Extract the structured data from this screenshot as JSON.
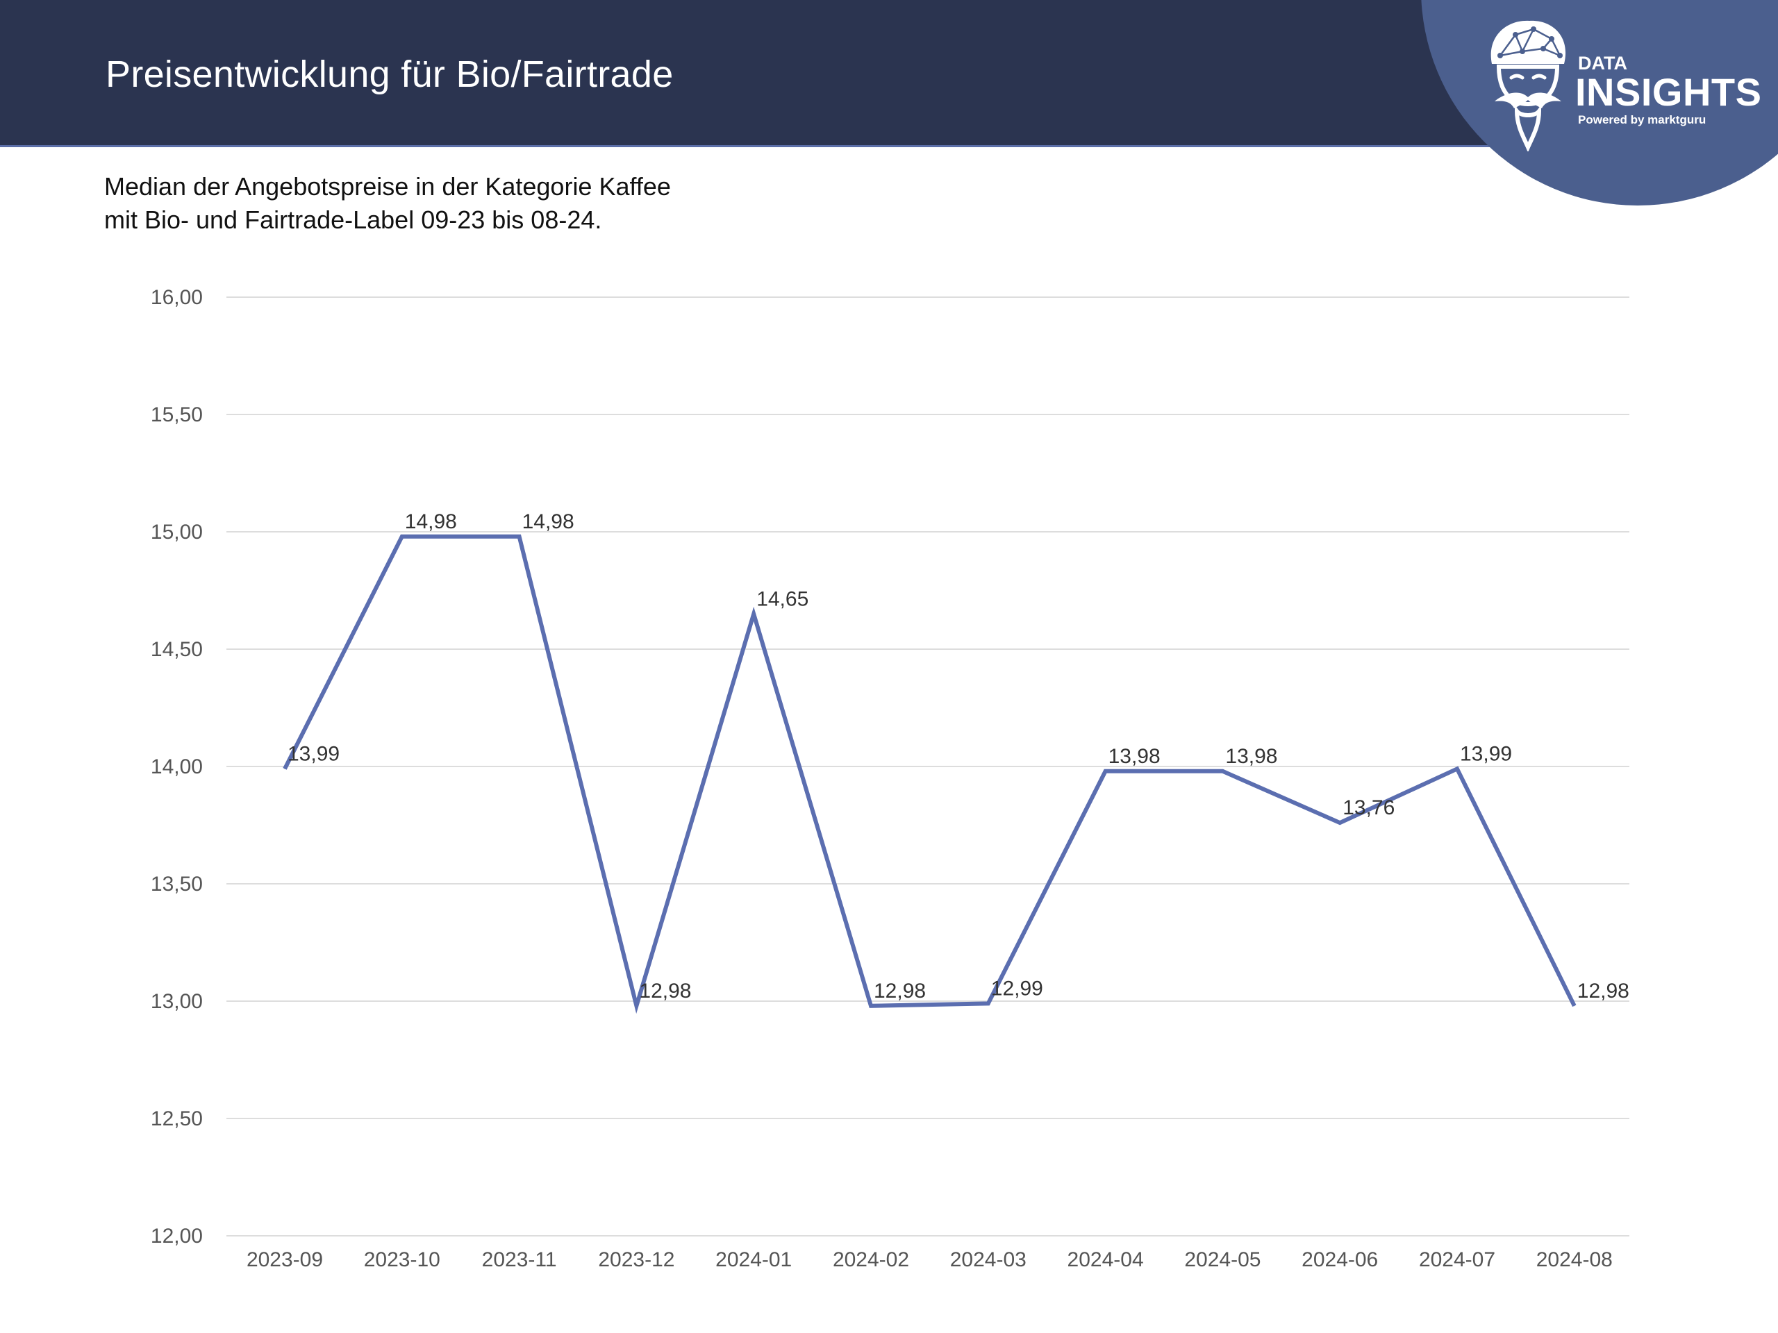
{
  "header": {
    "title": "Preisentwicklung für Bio/Fairtrade",
    "background": "#2b3450"
  },
  "brand": {
    "line1": "DATA",
    "line2": "INSIGHTS",
    "tagline": "Powered by marktguru",
    "badge_color": "#4b5f8e",
    "logo_icon": "mascot-turban-icon"
  },
  "subtitle": {
    "line1": "Median der Angebotspreise in der Kategorie Kaffee",
    "line2": "mit Bio- und Fairtrade-Label 09-23 bis 08-24."
  },
  "chart_data": {
    "type": "line",
    "categories": [
      "2023-09",
      "2023-10",
      "2023-11",
      "2023-12",
      "2024-01",
      "2024-02",
      "2024-03",
      "2024-04",
      "2024-05",
      "2024-06",
      "2024-07",
      "2024-08"
    ],
    "series": [
      {
        "values": [
          13.99,
          14.98,
          14.98,
          12.98,
          14.65,
          12.98,
          12.99,
          13.98,
          13.98,
          13.76,
          13.99,
          12.98
        ],
        "labels": [
          "13,99",
          "14,98",
          "14,98",
          "12,98",
          "14,65",
          "12,98",
          "12,99",
          "13,98",
          "13,98",
          "13,76",
          "13,99",
          "12,98"
        ],
        "color": "#5b6eb0"
      }
    ],
    "ylim": [
      12.0,
      16.0
    ],
    "yticks": [
      "12,00",
      "12,50",
      "13,00",
      "13,50",
      "14,00",
      "14,50",
      "15,00",
      "15,50",
      "16,00"
    ],
    "xlabel": "",
    "ylabel": "",
    "grid": true,
    "legend": "none",
    "gridline_color": "#dddddd"
  }
}
